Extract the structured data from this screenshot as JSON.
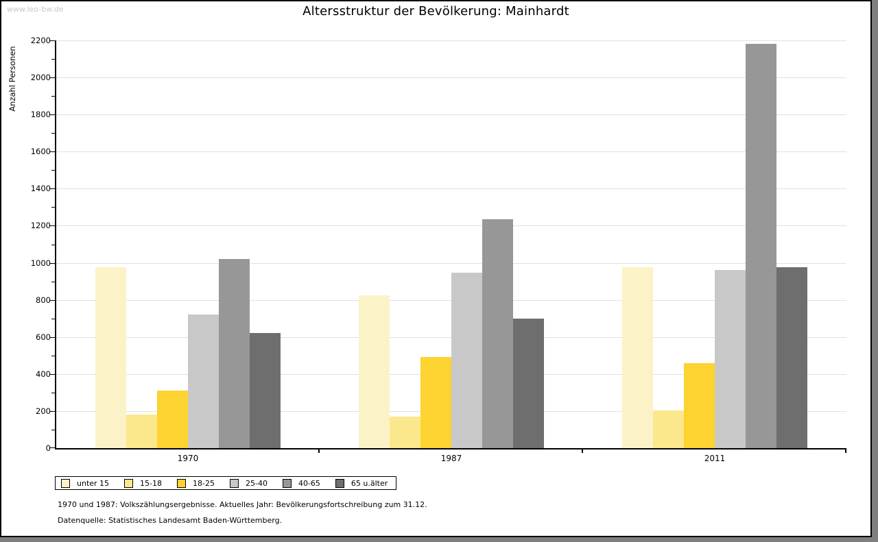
{
  "page": {
    "watermark": "www.leo-bw.de",
    "title": "Altersstruktur der Bevölkerung: Mainhardt",
    "footnote_line1": "1970 und 1987: Volkszählungsergebnisse. Aktuelles Jahr: Bevölkerungsfortschreibung zum 31.12.",
    "footnote_line2": "Datenquelle: Statistisches Landesamt Baden-Württemberg."
  },
  "colors": {
    "frame_shadow": "#7F7F7F",
    "grid": "#E0E0E0",
    "axis": "#000000",
    "watermark": "#C8C8C8"
  },
  "chart_data": {
    "type": "bar",
    "title": "Altersstruktur der Bevölkerung: Mainhardt",
    "ylabel": "Anzahl Personen",
    "xlabel": "",
    "categories": [
      "1970",
      "1987",
      "2011"
    ],
    "series": [
      {
        "name": "unter 15",
        "color": "#FBF3C7",
        "values": [
          975,
          825,
          975
        ]
      },
      {
        "name": "15-18",
        "color": "#FCE88C",
        "values": [
          180,
          170,
          205
        ]
      },
      {
        "name": "18-25",
        "color": "#FCD330",
        "values": [
          310,
          490,
          460
        ]
      },
      {
        "name": "25-40",
        "color": "#C8C8C8",
        "values": [
          720,
          945,
          960
        ]
      },
      {
        "name": "40-65",
        "color": "#979797",
        "values": [
          1020,
          1235,
          2180
        ]
      },
      {
        "name": "65 u.älter",
        "color": "#6E6E6E",
        "values": [
          620,
          700,
          975
        ]
      }
    ],
    "ylim": [
      0,
      2200
    ],
    "yticks": [
      0,
      200,
      400,
      600,
      800,
      1000,
      1200,
      1400,
      1600,
      1800,
      2000,
      2200
    ],
    "minor_ytick_step": 100,
    "grid": true,
    "legend_position": "bottom"
  }
}
